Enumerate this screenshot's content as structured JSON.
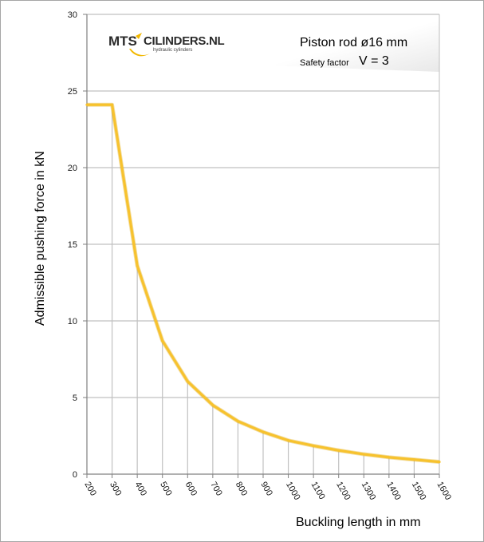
{
  "chart_data": {
    "type": "line",
    "title": "Piston rod ø16 mm",
    "subtitle": {
      "label": "Safety factor",
      "value": "V = 3"
    },
    "xlabel": "Buckling length in mm",
    "ylabel": "Admissible pushing force in kN",
    "xlim": [
      200,
      1600
    ],
    "ylim": [
      0,
      30
    ],
    "xticks": [
      200,
      300,
      400,
      500,
      600,
      700,
      800,
      900,
      1000,
      1100,
      1200,
      1300,
      1400,
      1500,
      1600
    ],
    "yticks": [
      0,
      5,
      10,
      15,
      20,
      25,
      30
    ],
    "grid": {
      "horizontal": true,
      "vertical_drop_lines": true
    },
    "legend": "none",
    "series": [
      {
        "color": "#f7c22e",
        "x": [
          200,
          300,
          400,
          500,
          600,
          700,
          800,
          900,
          1000,
          1100,
          1200,
          1300,
          1400,
          1500,
          1600
        ],
        "y": [
          24.1,
          24.1,
          13.6,
          8.7,
          6.05,
          4.5,
          3.45,
          2.75,
          2.2,
          1.85,
          1.55,
          1.3,
          1.1,
          0.95,
          0.8
        ]
      }
    ]
  },
  "logo": {
    "brand": "MTS",
    "name": "CILINDERS.NL",
    "tagline": "hydraulic cylinders"
  },
  "colors": {
    "line": "#f7c22e",
    "grid": "#c0c0c0",
    "plot_bg_fade": "#eeeeee"
  }
}
